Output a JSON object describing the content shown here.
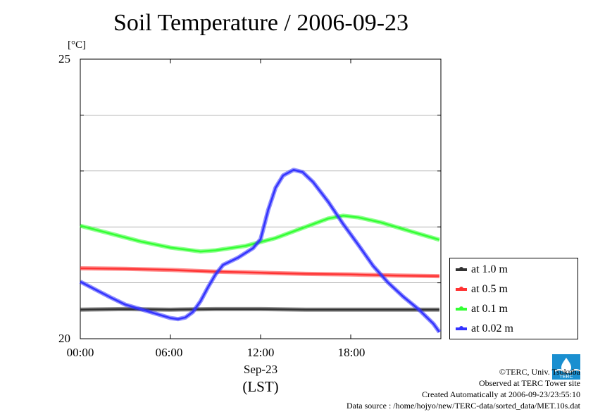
{
  "chart_data": {
    "type": "line",
    "title": "Soil Temperature / 2006-09-23",
    "ylabel": "[°C]",
    "xlabel": "(LST)",
    "x_date_label": "Sep-23",
    "ylim": [
      20,
      25
    ],
    "xlim": [
      0,
      23.9
    ],
    "yticks": [
      "25",
      "20"
    ],
    "xticks": [
      "00:00",
      "06:00",
      "12:00",
      "18:00"
    ],
    "grid": true,
    "legend_position": "right",
    "series": [
      {
        "name": "at 1.0 m",
        "color": "#333333",
        "points": [
          [
            0,
            20.52
          ],
          [
            3,
            20.53
          ],
          [
            6,
            20.52
          ],
          [
            9,
            20.53
          ],
          [
            12,
            20.53
          ],
          [
            15,
            20.52
          ],
          [
            18,
            20.52
          ],
          [
            21,
            20.52
          ],
          [
            23.9,
            20.52
          ]
        ]
      },
      {
        "name": "at 0.5 m",
        "color": "#ff3333",
        "points": [
          [
            0,
            21.26
          ],
          [
            3,
            21.25
          ],
          [
            6,
            21.23
          ],
          [
            9,
            21.2
          ],
          [
            12,
            21.18
          ],
          [
            15,
            21.16
          ],
          [
            18,
            21.15
          ],
          [
            21,
            21.13
          ],
          [
            23.9,
            21.12
          ]
        ]
      },
      {
        "name": "at 0.1 m",
        "color": "#33ff33",
        "points": [
          [
            0,
            22.02
          ],
          [
            2,
            21.88
          ],
          [
            4,
            21.74
          ],
          [
            6,
            21.63
          ],
          [
            8,
            21.56
          ],
          [
            9,
            21.58
          ],
          [
            11,
            21.66
          ],
          [
            13,
            21.8
          ],
          [
            15,
            22.0
          ],
          [
            16.5,
            22.15
          ],
          [
            17.5,
            22.2
          ],
          [
            18.5,
            22.17
          ],
          [
            20,
            22.08
          ],
          [
            22,
            21.92
          ],
          [
            23.9,
            21.77
          ]
        ]
      },
      {
        "name": "at 0.02 m",
        "color": "#3333ff",
        "points": [
          [
            0,
            21.02
          ],
          [
            1,
            20.88
          ],
          [
            2,
            20.74
          ],
          [
            3,
            20.61
          ],
          [
            4,
            20.53
          ],
          [
            5,
            20.45
          ],
          [
            6,
            20.37
          ],
          [
            6.5,
            20.35
          ],
          [
            7,
            20.38
          ],
          [
            7.5,
            20.48
          ],
          [
            8,
            20.67
          ],
          [
            8.5,
            20.92
          ],
          [
            9,
            21.15
          ],
          [
            9.5,
            21.32
          ],
          [
            10.5,
            21.45
          ],
          [
            11.5,
            21.62
          ],
          [
            12,
            21.78
          ],
          [
            12.5,
            22.3
          ],
          [
            13,
            22.7
          ],
          [
            13.5,
            22.92
          ],
          [
            14.2,
            23.02
          ],
          [
            14.8,
            22.98
          ],
          [
            15.5,
            22.8
          ],
          [
            16.5,
            22.45
          ],
          [
            17.5,
            22.05
          ],
          [
            18.5,
            21.68
          ],
          [
            19.5,
            21.3
          ],
          [
            20.5,
            21.0
          ],
          [
            21.5,
            20.75
          ],
          [
            22.5,
            20.53
          ],
          [
            23.5,
            20.27
          ],
          [
            23.9,
            20.12
          ]
        ]
      }
    ]
  },
  "credits": {
    "copyright": "©TERC, Univ. Tsukuba",
    "observed": "Observed at TERC Tower site",
    "created": "Created Automatically at 2006-09-23/23:55:10",
    "source": "Data source : /home/hojyo/new/TERC-data/sorted_data/MET.10s.dat",
    "logo_text": "TERC"
  }
}
